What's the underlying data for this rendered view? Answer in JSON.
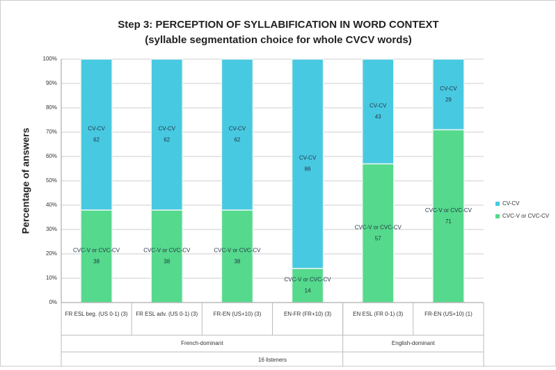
{
  "chart_data": {
    "type": "stacked-bar",
    "title": "Step 3: PERCEPTION OF SYLLABIFICATION IN WORD CONTEXT",
    "subtitle": "(syllable segmentation choice for whole CVCV words)",
    "y_label": "Percentage of answers",
    "categories": [
      "FR ESL beg. (US 0-1) (3)",
      "FR ESL adv. (US 0-1) (3)",
      "FR-EN (US+10) (3)",
      "EN-FR (FR+10) (3)",
      "EN ESL (FR 0-1) (3)",
      "FR-EN (US+10) (1)"
    ],
    "groups": [
      {
        "label": "French-dominant",
        "span": 4
      },
      {
        "label": "English-dominant",
        "span": 2
      }
    ],
    "x_label": "16 listeners",
    "series": [
      {
        "name": "CVC-V or CVC-CV",
        "color": "#55d98c",
        "values": [
          38,
          38,
          38,
          14,
          57,
          71
        ]
      },
      {
        "name": "CV-CV",
        "color": "#48c9e2",
        "values": [
          62,
          62,
          62,
          86,
          43,
          29
        ]
      }
    ],
    "ylim": [
      0,
      100
    ],
    "yticks": [
      {
        "value": 0,
        "label": "0%"
      },
      {
        "value": 10,
        "label": "10%"
      },
      {
        "value": 20,
        "label": "20%"
      },
      {
        "value": 30,
        "label": "30%"
      },
      {
        "value": 40,
        "label": "40%"
      },
      {
        "value": 50,
        "label": "50%"
      },
      {
        "value": 60,
        "label": "60%"
      },
      {
        "value": 70,
        "label": "70%"
      },
      {
        "value": 80,
        "label": "80%"
      },
      {
        "value": 90,
        "label": "90%"
      },
      {
        "value": 100,
        "label": "100%"
      }
    ],
    "grid": true,
    "legend": "right"
  }
}
